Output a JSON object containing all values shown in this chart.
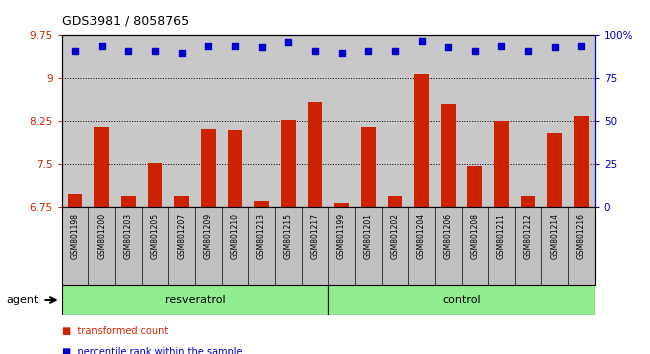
{
  "title": "GDS3981 / 8058765",
  "samples": [
    "GSM801198",
    "GSM801200",
    "GSM801203",
    "GSM801205",
    "GSM801207",
    "GSM801209",
    "GSM801210",
    "GSM801213",
    "GSM801215",
    "GSM801217",
    "GSM801199",
    "GSM801201",
    "GSM801202",
    "GSM801204",
    "GSM801206",
    "GSM801208",
    "GSM801211",
    "GSM801212",
    "GSM801214",
    "GSM801216"
  ],
  "bar_values": [
    6.97,
    8.15,
    6.95,
    7.52,
    6.95,
    8.12,
    8.1,
    6.85,
    8.28,
    8.58,
    6.82,
    8.15,
    6.95,
    9.08,
    8.55,
    7.47,
    8.25,
    6.95,
    8.05,
    8.35
  ],
  "dot_values": [
    91,
    94,
    91,
    91,
    90,
    94,
    94,
    93,
    96,
    91,
    90,
    91,
    91,
    97,
    93,
    91,
    94,
    91,
    93,
    94
  ],
  "group_labels": [
    "resveratrol",
    "control"
  ],
  "group_sizes": [
    10,
    10
  ],
  "bar_color": "#cc2200",
  "dot_color": "#0000cc",
  "ylim_left": [
    6.75,
    9.75
  ],
  "ylim_right": [
    0,
    100
  ],
  "yticks_left": [
    6.75,
    7.5,
    8.25,
    9.0,
    9.75
  ],
  "ytick_labels_left": [
    "6.75",
    "7.5",
    "8.25",
    "9",
    "9.75"
  ],
  "yticks_right": [
    0,
    25,
    50,
    75,
    100
  ],
  "ytick_labels_right": [
    "0",
    "25",
    "50",
    "75",
    "100%"
  ],
  "grid_lines": [
    7.5,
    8.25,
    9.0
  ],
  "agent_label": "agent",
  "legend_bar": "transformed count",
  "legend_dot": "percentile rank within the sample",
  "bar_width": 0.55,
  "plot_bg": "#c8c8c8",
  "label_bg": "#c0c0c0",
  "group_color": "#90ee90"
}
